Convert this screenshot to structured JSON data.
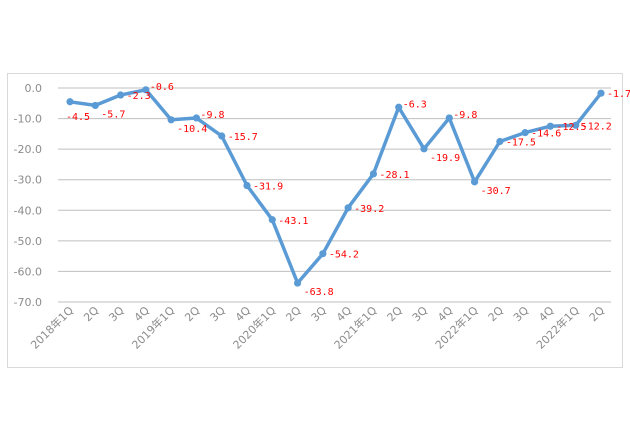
{
  "chart_data": {
    "type": "line",
    "title": "",
    "xlabel": "",
    "ylabel": "",
    "ylim": [
      -70,
      0
    ],
    "y_ticks": [
      "0.0",
      "-10.0",
      "-20.0",
      "-30.0",
      "-40.0",
      "-50.0",
      "-60.0",
      "-70.0"
    ],
    "grid": "horizontal",
    "legend": "none",
    "categories": [
      "2018年1Q",
      "2Q",
      "3Q",
      "4Q",
      "2019年1Q",
      "2Q",
      "3Q",
      "4Q",
      "2020年1Q",
      "2Q",
      "3Q",
      "4Q",
      "2021年1Q",
      "2Q",
      "3Q",
      "4Q",
      "2022年1Q",
      "2Q",
      "3Q",
      "4Q",
      "2022年1Q",
      "2Q"
    ],
    "series": [
      {
        "values": [
          -4.5,
          -5.7,
          -2.3,
          -0.6,
          -10.4,
          -9.8,
          -15.7,
          -31.9,
          -43.1,
          -63.8,
          -54.2,
          -39.2,
          -28.1,
          -6.3,
          -19.9,
          -9.8,
          -30.7,
          -17.5,
          -14.6,
          -12.5,
          -12.2,
          -1.7
        ],
        "labels": [
          "-4.5",
          "-5.7",
          "-2.3",
          "-0.6",
          "-10.4",
          "-9.8",
          "-15.7",
          "-31.9",
          "-43.1",
          "-63.8",
          "-54.2",
          "-39.2",
          "-28.1",
          "-6.3",
          "-19.9",
          "-9.8",
          "-30.7",
          "-17.5",
          "-14.6",
          "-12.5",
          "-12.2",
          "-1.7"
        ]
      }
    ],
    "colors": {
      "line": "#5b9bd5",
      "data_label": "#ff0000",
      "grid": "#bfbfbf",
      "tick": "#8c8c8c"
    }
  }
}
